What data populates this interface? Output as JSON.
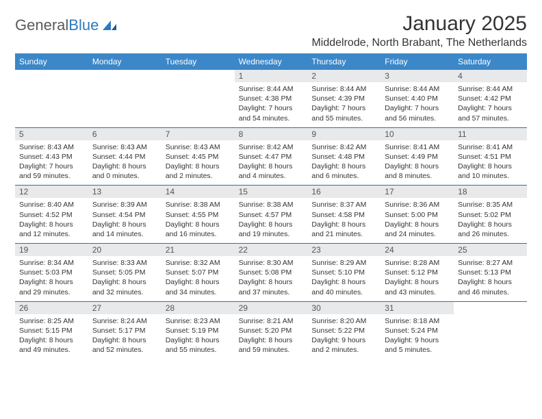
{
  "logo": {
    "word1": "General",
    "word2": "Blue"
  },
  "title": "January 2025",
  "location": "Middelrode, North Brabant, The Netherlands",
  "colors": {
    "header_bg": "#3b87c8",
    "header_text": "#ffffff",
    "daybar_bg": "#e8e9eb",
    "rule": "#2f6fa8",
    "logo_gray": "#5a5a5a",
    "logo_blue": "#2f7abf"
  },
  "typography": {
    "title_fontsize": 30,
    "location_fontsize": 16,
    "weekday_fontsize": 12,
    "daynum_fontsize": 12,
    "info_fontsize": 10.5
  },
  "weekdays": [
    "Sunday",
    "Monday",
    "Tuesday",
    "Wednesday",
    "Thursday",
    "Friday",
    "Saturday"
  ],
  "weeks": [
    [
      {
        "day": "",
        "sunrise": "",
        "sunset": "",
        "daylight1": "",
        "daylight2": ""
      },
      {
        "day": "",
        "sunrise": "",
        "sunset": "",
        "daylight1": "",
        "daylight2": ""
      },
      {
        "day": "",
        "sunrise": "",
        "sunset": "",
        "daylight1": "",
        "daylight2": ""
      },
      {
        "day": "1",
        "sunrise": "Sunrise: 8:44 AM",
        "sunset": "Sunset: 4:38 PM",
        "daylight1": "Daylight: 7 hours",
        "daylight2": "and 54 minutes."
      },
      {
        "day": "2",
        "sunrise": "Sunrise: 8:44 AM",
        "sunset": "Sunset: 4:39 PM",
        "daylight1": "Daylight: 7 hours",
        "daylight2": "and 55 minutes."
      },
      {
        "day": "3",
        "sunrise": "Sunrise: 8:44 AM",
        "sunset": "Sunset: 4:40 PM",
        "daylight1": "Daylight: 7 hours",
        "daylight2": "and 56 minutes."
      },
      {
        "day": "4",
        "sunrise": "Sunrise: 8:44 AM",
        "sunset": "Sunset: 4:42 PM",
        "daylight1": "Daylight: 7 hours",
        "daylight2": "and 57 minutes."
      }
    ],
    [
      {
        "day": "5",
        "sunrise": "Sunrise: 8:43 AM",
        "sunset": "Sunset: 4:43 PM",
        "daylight1": "Daylight: 7 hours",
        "daylight2": "and 59 minutes."
      },
      {
        "day": "6",
        "sunrise": "Sunrise: 8:43 AM",
        "sunset": "Sunset: 4:44 PM",
        "daylight1": "Daylight: 8 hours",
        "daylight2": "and 0 minutes."
      },
      {
        "day": "7",
        "sunrise": "Sunrise: 8:43 AM",
        "sunset": "Sunset: 4:45 PM",
        "daylight1": "Daylight: 8 hours",
        "daylight2": "and 2 minutes."
      },
      {
        "day": "8",
        "sunrise": "Sunrise: 8:42 AM",
        "sunset": "Sunset: 4:47 PM",
        "daylight1": "Daylight: 8 hours",
        "daylight2": "and 4 minutes."
      },
      {
        "day": "9",
        "sunrise": "Sunrise: 8:42 AM",
        "sunset": "Sunset: 4:48 PM",
        "daylight1": "Daylight: 8 hours",
        "daylight2": "and 6 minutes."
      },
      {
        "day": "10",
        "sunrise": "Sunrise: 8:41 AM",
        "sunset": "Sunset: 4:49 PM",
        "daylight1": "Daylight: 8 hours",
        "daylight2": "and 8 minutes."
      },
      {
        "day": "11",
        "sunrise": "Sunrise: 8:41 AM",
        "sunset": "Sunset: 4:51 PM",
        "daylight1": "Daylight: 8 hours",
        "daylight2": "and 10 minutes."
      }
    ],
    [
      {
        "day": "12",
        "sunrise": "Sunrise: 8:40 AM",
        "sunset": "Sunset: 4:52 PM",
        "daylight1": "Daylight: 8 hours",
        "daylight2": "and 12 minutes."
      },
      {
        "day": "13",
        "sunrise": "Sunrise: 8:39 AM",
        "sunset": "Sunset: 4:54 PM",
        "daylight1": "Daylight: 8 hours",
        "daylight2": "and 14 minutes."
      },
      {
        "day": "14",
        "sunrise": "Sunrise: 8:38 AM",
        "sunset": "Sunset: 4:55 PM",
        "daylight1": "Daylight: 8 hours",
        "daylight2": "and 16 minutes."
      },
      {
        "day": "15",
        "sunrise": "Sunrise: 8:38 AM",
        "sunset": "Sunset: 4:57 PM",
        "daylight1": "Daylight: 8 hours",
        "daylight2": "and 19 minutes."
      },
      {
        "day": "16",
        "sunrise": "Sunrise: 8:37 AM",
        "sunset": "Sunset: 4:58 PM",
        "daylight1": "Daylight: 8 hours",
        "daylight2": "and 21 minutes."
      },
      {
        "day": "17",
        "sunrise": "Sunrise: 8:36 AM",
        "sunset": "Sunset: 5:00 PM",
        "daylight1": "Daylight: 8 hours",
        "daylight2": "and 24 minutes."
      },
      {
        "day": "18",
        "sunrise": "Sunrise: 8:35 AM",
        "sunset": "Sunset: 5:02 PM",
        "daylight1": "Daylight: 8 hours",
        "daylight2": "and 26 minutes."
      }
    ],
    [
      {
        "day": "19",
        "sunrise": "Sunrise: 8:34 AM",
        "sunset": "Sunset: 5:03 PM",
        "daylight1": "Daylight: 8 hours",
        "daylight2": "and 29 minutes."
      },
      {
        "day": "20",
        "sunrise": "Sunrise: 8:33 AM",
        "sunset": "Sunset: 5:05 PM",
        "daylight1": "Daylight: 8 hours",
        "daylight2": "and 32 minutes."
      },
      {
        "day": "21",
        "sunrise": "Sunrise: 8:32 AM",
        "sunset": "Sunset: 5:07 PM",
        "daylight1": "Daylight: 8 hours",
        "daylight2": "and 34 minutes."
      },
      {
        "day": "22",
        "sunrise": "Sunrise: 8:30 AM",
        "sunset": "Sunset: 5:08 PM",
        "daylight1": "Daylight: 8 hours",
        "daylight2": "and 37 minutes."
      },
      {
        "day": "23",
        "sunrise": "Sunrise: 8:29 AM",
        "sunset": "Sunset: 5:10 PM",
        "daylight1": "Daylight: 8 hours",
        "daylight2": "and 40 minutes."
      },
      {
        "day": "24",
        "sunrise": "Sunrise: 8:28 AM",
        "sunset": "Sunset: 5:12 PM",
        "daylight1": "Daylight: 8 hours",
        "daylight2": "and 43 minutes."
      },
      {
        "day": "25",
        "sunrise": "Sunrise: 8:27 AM",
        "sunset": "Sunset: 5:13 PM",
        "daylight1": "Daylight: 8 hours",
        "daylight2": "and 46 minutes."
      }
    ],
    [
      {
        "day": "26",
        "sunrise": "Sunrise: 8:25 AM",
        "sunset": "Sunset: 5:15 PM",
        "daylight1": "Daylight: 8 hours",
        "daylight2": "and 49 minutes."
      },
      {
        "day": "27",
        "sunrise": "Sunrise: 8:24 AM",
        "sunset": "Sunset: 5:17 PM",
        "daylight1": "Daylight: 8 hours",
        "daylight2": "and 52 minutes."
      },
      {
        "day": "28",
        "sunrise": "Sunrise: 8:23 AM",
        "sunset": "Sunset: 5:19 PM",
        "daylight1": "Daylight: 8 hours",
        "daylight2": "and 55 minutes."
      },
      {
        "day": "29",
        "sunrise": "Sunrise: 8:21 AM",
        "sunset": "Sunset: 5:20 PM",
        "daylight1": "Daylight: 8 hours",
        "daylight2": "and 59 minutes."
      },
      {
        "day": "30",
        "sunrise": "Sunrise: 8:20 AM",
        "sunset": "Sunset: 5:22 PM",
        "daylight1": "Daylight: 9 hours",
        "daylight2": "and 2 minutes."
      },
      {
        "day": "31",
        "sunrise": "Sunrise: 8:18 AM",
        "sunset": "Sunset: 5:24 PM",
        "daylight1": "Daylight: 9 hours",
        "daylight2": "and 5 minutes."
      },
      {
        "day": "",
        "sunrise": "",
        "sunset": "",
        "daylight1": "",
        "daylight2": ""
      }
    ]
  ]
}
